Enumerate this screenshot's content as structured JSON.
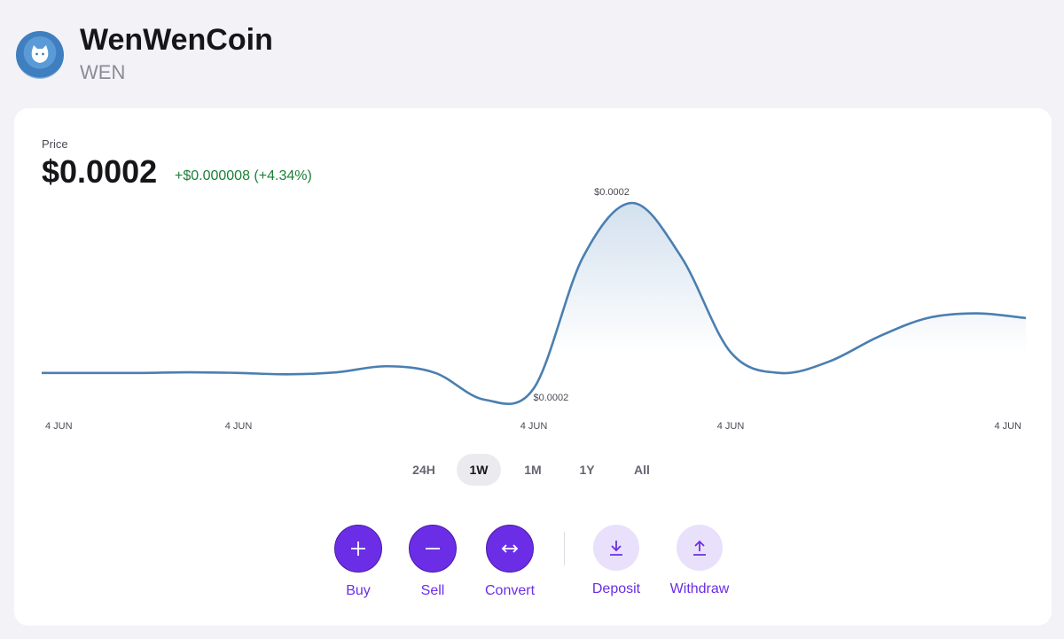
{
  "header": {
    "title": "WenWenCoin",
    "symbol": "WEN"
  },
  "price": {
    "label": "Price",
    "value": "$0.0002",
    "change": "+$0.000008 (+4.34%)"
  },
  "chart_data": {
    "type": "line",
    "categories": [
      "4 JUN",
      null,
      null,
      null,
      "4 JUN",
      null,
      null,
      null,
      null,
      null,
      "4 JUN",
      null,
      null,
      null,
      "4 JUN",
      null,
      null,
      null,
      null,
      null,
      "4 JUN"
    ],
    "values": [
      0.0001895,
      0.0001895,
      0.0001895,
      0.0001896,
      0.0001895,
      0.0001893,
      0.0001896,
      0.0001905,
      0.0001895,
      0.0001855,
      0.0001872,
      0.0002068,
      0.0002149,
      0.0002068,
      0.0001926,
      0.0001895,
      0.0001912,
      0.0001949,
      0.0001977,
      0.0001984,
      0.0001977
    ],
    "color": "#4a7fb0",
    "max_label": "$0.0002",
    "min_label": "$0.0002"
  },
  "ranges": {
    "options": [
      "24H",
      "1W",
      "1M",
      "1Y",
      "All"
    ],
    "selected": 1
  },
  "actions": [
    {
      "label": "Buy",
      "style": "primary"
    },
    {
      "label": "Sell",
      "style": "primary"
    },
    {
      "label": "Convert",
      "style": "primary"
    },
    {
      "label": "Deposit",
      "style": "secondary"
    },
    {
      "label": "Withdraw",
      "style": "secondary"
    }
  ]
}
